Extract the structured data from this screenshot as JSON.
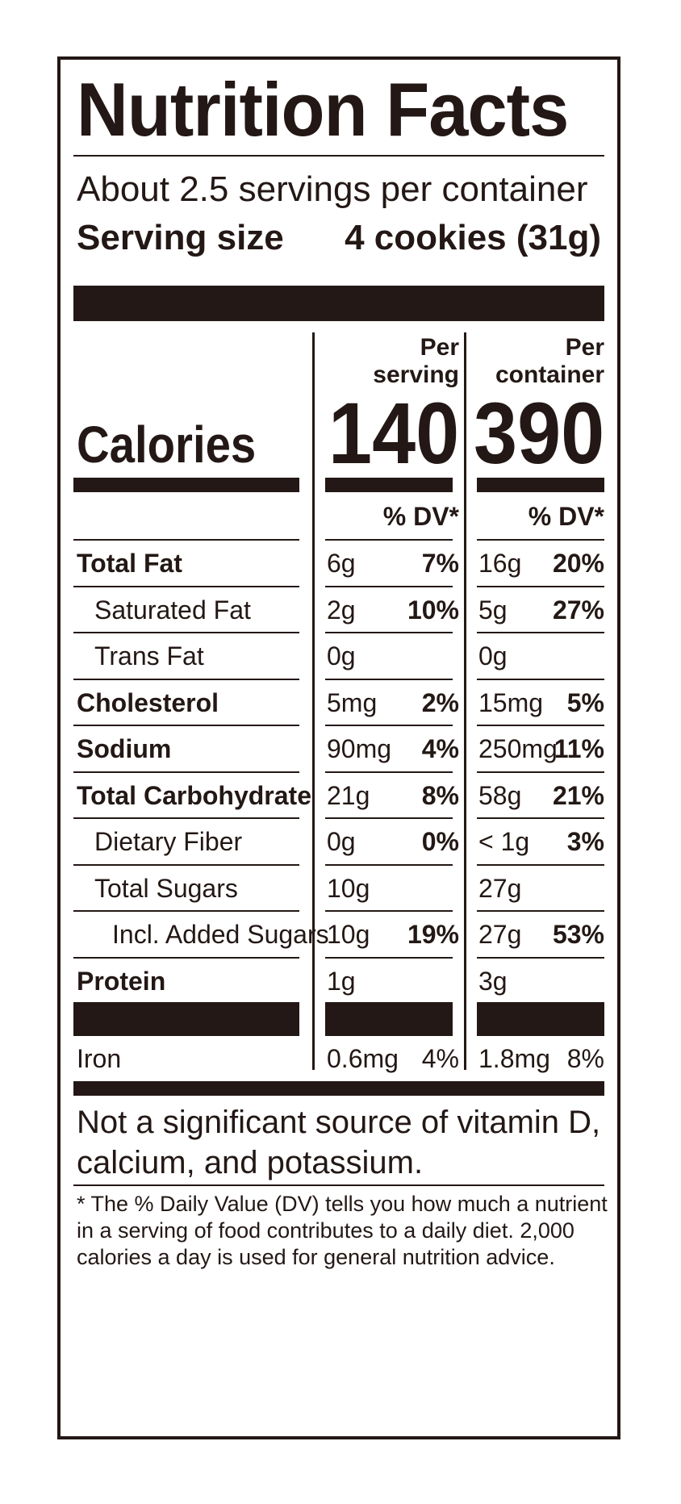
{
  "title": "Nutrition Facts",
  "servings_per_container": "About 2.5 servings per container",
  "serving_size": {
    "label": "Serving size",
    "value": "4 cookies (31g)"
  },
  "columns": {
    "serving": {
      "header_line1": "Per",
      "header_line2": "serving",
      "calories": "140",
      "dv_header": "% DV*"
    },
    "container": {
      "header_line1": "Per",
      "header_line2": "container",
      "calories": "390",
      "dv_header": "% DV*"
    }
  },
  "calories_label": "Calories",
  "nutrients": [
    {
      "name": "Total Fat",
      "bold": true,
      "indent": 0,
      "serving_amount": "6g",
      "serving_dv": "7%",
      "container_amount": "16g",
      "container_dv": "20%"
    },
    {
      "name": "Saturated Fat",
      "bold": false,
      "indent": 1,
      "serving_amount": "2g",
      "serving_dv": "10%",
      "container_amount": "5g",
      "container_dv": "27%"
    },
    {
      "name": "Trans Fat",
      "bold": false,
      "indent": 1,
      "serving_amount": "0g",
      "serving_dv": "",
      "container_amount": "0g",
      "container_dv": ""
    },
    {
      "name": "Cholesterol",
      "bold": true,
      "indent": 0,
      "serving_amount": "5mg",
      "serving_dv": "2%",
      "container_amount": "15mg",
      "container_dv": "5%"
    },
    {
      "name": "Sodium",
      "bold": true,
      "indent": 0,
      "serving_amount": "90mg",
      "serving_dv": "4%",
      "container_amount": "250mg",
      "container_dv": "11%"
    },
    {
      "name": "Total Carbohydrate",
      "bold": true,
      "indent": 0,
      "serving_amount": "21g",
      "serving_dv": "8%",
      "container_amount": "58g",
      "container_dv": "21%"
    },
    {
      "name": "Dietary Fiber",
      "bold": false,
      "indent": 1,
      "serving_amount": "0g",
      "serving_dv": "0%",
      "container_amount": "< 1g",
      "container_dv": "3%"
    },
    {
      "name": "Total Sugars",
      "bold": false,
      "indent": 1,
      "serving_amount": "10g",
      "serving_dv": "",
      "container_amount": "27g",
      "container_dv": ""
    },
    {
      "name": "Incl. Added Sugars",
      "bold": false,
      "indent": 2,
      "serving_amount": "10g",
      "serving_dv": "19%",
      "container_amount": "27g",
      "container_dv": "53%"
    },
    {
      "name": "Protein",
      "bold": true,
      "indent": 0,
      "serving_amount": "1g",
      "serving_dv": "",
      "container_amount": "3g",
      "container_dv": ""
    }
  ],
  "vitamins": [
    {
      "name": "Iron",
      "serving_amount": "0.6mg",
      "serving_dv": "4%",
      "container_amount": "1.8mg",
      "container_dv": "8%"
    }
  ],
  "footnote_main": "Not a significant source of vitamin D, calcium, and potassium.",
  "footnote_dv": "* The % Daily Value (DV) tells you how much a nutrient in a serving of food contributes to a daily diet. 2,000 calories a day is used for general nutrition advice."
}
